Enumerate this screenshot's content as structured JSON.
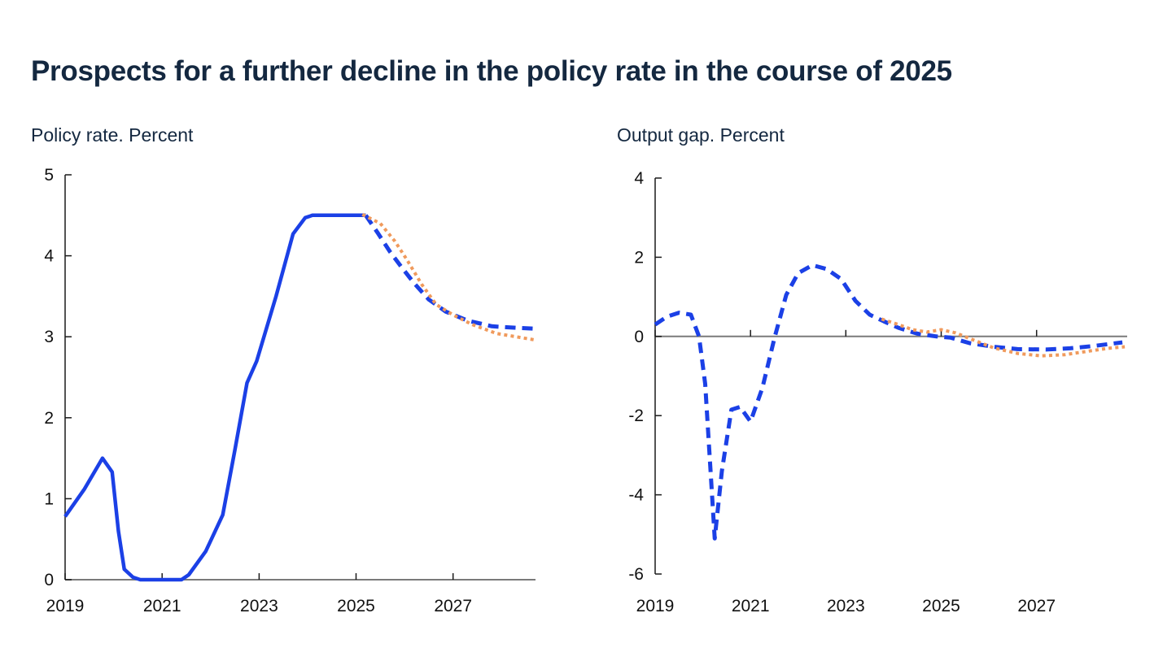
{
  "page": {
    "title": "Prospects for a further decline in the policy rate in the course of 2025",
    "background": "#ffffff"
  },
  "colors": {
    "title_navy": "#142840",
    "line_blue": "#1b40e6",
    "line_orange": "#f09a5c",
    "axis": "#1a1a1a",
    "baseline_gray": "#7a7a7a",
    "tick_label": "#111111"
  },
  "chart_data": [
    {
      "id": "policy-rate",
      "type": "line",
      "title": "Policy rate. Percent",
      "xlim": [
        2019,
        2028.7
      ],
      "ylim": [
        0,
        5
      ],
      "xticks": [
        2019,
        2021,
        2023,
        2025,
        2027
      ],
      "yticks": [
        0,
        1,
        2,
        3,
        4,
        5
      ],
      "grid": false,
      "legend": null,
      "baseline": 0,
      "frame": {
        "x0": 80,
        "x1": 658,
        "y_bottom": 713,
        "y_top": 215,
        "label_y": 752
      },
      "series": [
        {
          "name": "policy-rate-historical",
          "style": "solid",
          "color": "#1b40e6",
          "points": [
            [
              2019.0,
              0.78
            ],
            [
              2019.4,
              1.12
            ],
            [
              2019.77,
              1.5
            ],
            [
              2019.97,
              1.33
            ],
            [
              2020.1,
              0.6
            ],
            [
              2020.22,
              0.13
            ],
            [
              2020.4,
              0.03
            ],
            [
              2020.55,
              0.0
            ],
            [
              2021.4,
              0.0
            ],
            [
              2021.55,
              0.06
            ],
            [
              2021.9,
              0.35
            ],
            [
              2022.25,
              0.8
            ],
            [
              2022.5,
              1.6
            ],
            [
              2022.75,
              2.43
            ],
            [
              2022.95,
              2.7
            ],
            [
              2023.35,
              3.5
            ],
            [
              2023.7,
              4.27
            ],
            [
              2023.95,
              4.47
            ],
            [
              2024.1,
              4.5
            ],
            [
              2025.2,
              4.5
            ]
          ]
        },
        {
          "name": "policy-rate-projection-new",
          "style": "dashed",
          "color": "#1b40e6",
          "points": [
            [
              2025.2,
              4.5
            ],
            [
              2025.45,
              4.28
            ],
            [
              2025.7,
              4.05
            ],
            [
              2025.95,
              3.85
            ],
            [
              2026.2,
              3.66
            ],
            [
              2026.5,
              3.46
            ],
            [
              2026.85,
              3.31
            ],
            [
              2027.3,
              3.2
            ],
            [
              2027.8,
              3.13
            ],
            [
              2028.3,
              3.11
            ],
            [
              2028.65,
              3.1
            ]
          ]
        },
        {
          "name": "policy-rate-projection-previous",
          "style": "dotted",
          "color": "#f09a5c",
          "points": [
            [
              2025.13,
              4.51
            ],
            [
              2025.5,
              4.4
            ],
            [
              2025.8,
              4.18
            ],
            [
              2026.05,
              3.95
            ],
            [
              2026.35,
              3.65
            ],
            [
              2026.65,
              3.4
            ],
            [
              2027.0,
              3.27
            ],
            [
              2027.4,
              3.15
            ],
            [
              2027.9,
              3.04
            ],
            [
              2028.4,
              2.99
            ],
            [
              2028.7,
              2.96
            ]
          ]
        }
      ]
    },
    {
      "id": "output-gap",
      "type": "line",
      "title": "Output gap. Percent",
      "xlim": [
        2019,
        2028.9
      ],
      "ylim": [
        -6,
        4
      ],
      "xticks": [
        2019,
        2021,
        2023,
        2025,
        2027
      ],
      "yticks": [
        -6,
        -4,
        -2,
        0,
        2,
        4
      ],
      "grid": false,
      "legend": null,
      "baseline": 0,
      "frame": {
        "x0": 805,
        "x1": 1385,
        "y_bottom": 706,
        "y_top": 219,
        "label_y": 752
      },
      "series": [
        {
          "name": "output-gap-projection-new",
          "style": "dashed",
          "color": "#1b40e6",
          "points": [
            [
              2019.0,
              0.3
            ],
            [
              2019.25,
              0.5
            ],
            [
              2019.5,
              0.6
            ],
            [
              2019.75,
              0.55
            ],
            [
              2019.92,
              0.0
            ],
            [
              2020.05,
              -1.2
            ],
            [
              2020.25,
              -5.1
            ],
            [
              2020.4,
              -3.4
            ],
            [
              2020.6,
              -1.85
            ],
            [
              2020.78,
              -1.78
            ],
            [
              2021.0,
              -2.15
            ],
            [
              2021.25,
              -1.3
            ],
            [
              2021.5,
              -0.05
            ],
            [
              2021.75,
              1.05
            ],
            [
              2022.0,
              1.6
            ],
            [
              2022.3,
              1.8
            ],
            [
              2022.6,
              1.7
            ],
            [
              2022.9,
              1.45
            ],
            [
              2023.2,
              0.9
            ],
            [
              2023.5,
              0.55
            ],
            [
              2023.8,
              0.38
            ],
            [
              2024.1,
              0.22
            ],
            [
              2024.5,
              0.07
            ],
            [
              2024.9,
              0.0
            ],
            [
              2025.2,
              -0.03
            ],
            [
              2025.6,
              -0.17
            ],
            [
              2026.1,
              -0.26
            ],
            [
              2026.6,
              -0.32
            ],
            [
              2027.2,
              -0.33
            ],
            [
              2027.7,
              -0.3
            ],
            [
              2028.2,
              -0.24
            ],
            [
              2028.8,
              -0.15
            ]
          ]
        },
        {
          "name": "output-gap-projection-previous",
          "style": "dotted",
          "color": "#f09a5c",
          "points": [
            [
              2023.75,
              0.44
            ],
            [
              2024.1,
              0.3
            ],
            [
              2024.4,
              0.17
            ],
            [
              2024.7,
              0.11
            ],
            [
              2025.0,
              0.17
            ],
            [
              2025.3,
              0.09
            ],
            [
              2025.7,
              -0.1
            ],
            [
              2026.1,
              -0.29
            ],
            [
              2026.6,
              -0.43
            ],
            [
              2027.1,
              -0.49
            ],
            [
              2027.6,
              -0.46
            ],
            [
              2028.1,
              -0.37
            ],
            [
              2028.5,
              -0.3
            ],
            [
              2028.85,
              -0.26
            ]
          ]
        }
      ]
    }
  ]
}
